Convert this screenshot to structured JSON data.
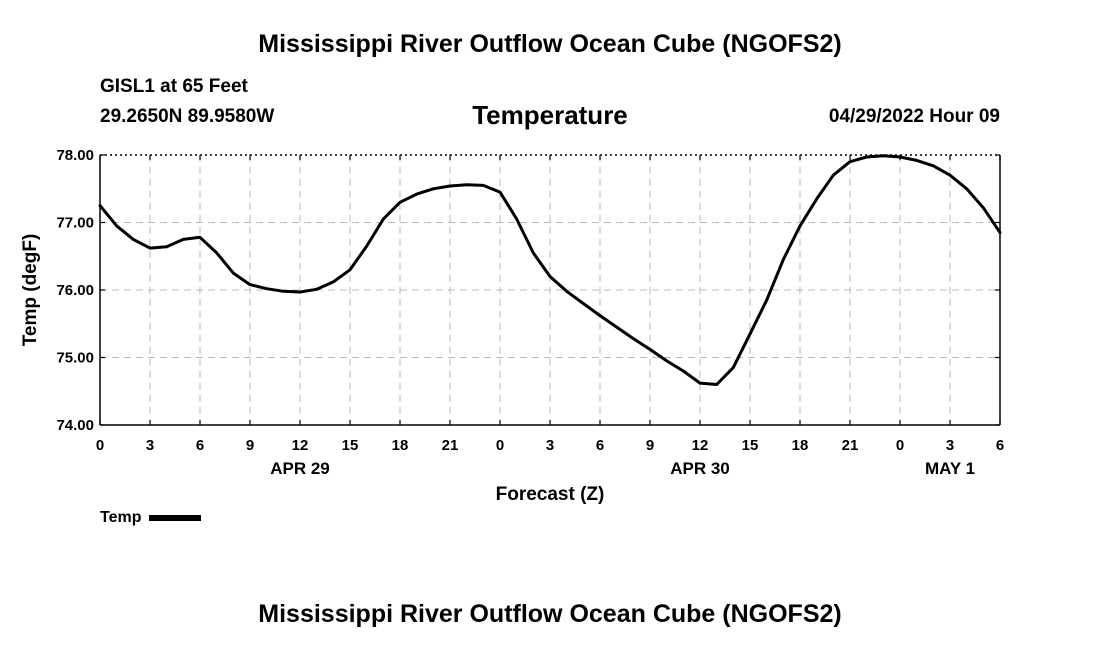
{
  "header": {
    "title": "Mississippi River Outflow Ocean Cube (NGOFS2)",
    "station": "GISL1 at 65 Feet",
    "coordinates": "29.2650N  89.9580W",
    "parameter": "Temperature",
    "datetime": "04/29/2022 Hour 09"
  },
  "footer": {
    "title": "Mississippi River Outflow Ocean Cube (NGOFS2)"
  },
  "legend": {
    "label": "Temp",
    "color": "#000000"
  },
  "chart_data": {
    "type": "line",
    "title": "Temperature",
    "xlabel": "Forecast (Z)",
    "ylabel": "Temp (degF)",
    "xlim": [
      0,
      54
    ],
    "ylim": [
      74,
      78
    ],
    "grid": true,
    "y_ticks": [
      {
        "value": 74,
        "label": "74.00"
      },
      {
        "value": 75,
        "label": "75.00"
      },
      {
        "value": 76,
        "label": "76.00"
      },
      {
        "value": 77,
        "label": "77.00"
      },
      {
        "value": 78,
        "label": "78.00"
      }
    ],
    "x_ticks": [
      {
        "value": 0,
        "label": "0"
      },
      {
        "value": 3,
        "label": "3"
      },
      {
        "value": 6,
        "label": "6"
      },
      {
        "value": 9,
        "label": "9"
      },
      {
        "value": 12,
        "label": "12"
      },
      {
        "value": 15,
        "label": "15"
      },
      {
        "value": 18,
        "label": "18"
      },
      {
        "value": 21,
        "label": "21"
      },
      {
        "value": 24,
        "label": "0"
      },
      {
        "value": 27,
        "label": "3"
      },
      {
        "value": 30,
        "label": "6"
      },
      {
        "value": 33,
        "label": "9"
      },
      {
        "value": 36,
        "label": "12"
      },
      {
        "value": 39,
        "label": "15"
      },
      {
        "value": 42,
        "label": "18"
      },
      {
        "value": 45,
        "label": "21"
      },
      {
        "value": 48,
        "label": "0"
      },
      {
        "value": 51,
        "label": "3"
      },
      {
        "value": 54,
        "label": "6"
      }
    ],
    "date_labels": [
      {
        "value": 12,
        "label": "APR 29"
      },
      {
        "value": 36,
        "label": "APR 30"
      },
      {
        "value": 51,
        "label": "MAY 1"
      }
    ],
    "series": [
      {
        "name": "Temp",
        "color": "#000000",
        "x": [
          0,
          1,
          2,
          3,
          4,
          5,
          6,
          7,
          8,
          9,
          10,
          11,
          12,
          13,
          14,
          15,
          16,
          17,
          18,
          19,
          20,
          21,
          22,
          23,
          24,
          25,
          26,
          27,
          28,
          29,
          30,
          31,
          32,
          33,
          34,
          35,
          36,
          37,
          38,
          39,
          40,
          41,
          42,
          43,
          44,
          45,
          46,
          47,
          48,
          49,
          50,
          51,
          52,
          53,
          54
        ],
        "values": [
          77.25,
          76.95,
          76.75,
          76.62,
          76.64,
          76.75,
          76.78,
          76.55,
          76.25,
          76.08,
          76.02,
          75.98,
          75.97,
          76.01,
          76.12,
          76.3,
          76.65,
          77.05,
          77.3,
          77.42,
          77.5,
          77.54,
          77.56,
          77.55,
          77.45,
          77.05,
          76.55,
          76.2,
          75.98,
          75.8,
          75.62,
          75.45,
          75.28,
          75.12,
          74.95,
          74.8,
          74.62,
          74.6,
          74.85,
          75.35,
          75.85,
          76.45,
          76.95,
          77.35,
          77.7,
          77.9,
          77.97,
          77.99,
          77.97,
          77.92,
          77.84,
          77.7,
          77.5,
          77.22,
          76.85
        ]
      }
    ]
  }
}
